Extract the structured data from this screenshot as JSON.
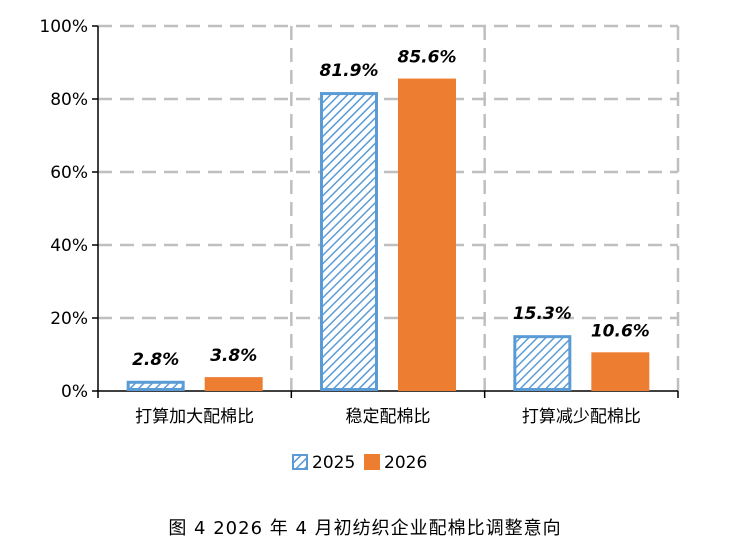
{
  "chart_data": {
    "type": "bar",
    "title": "",
    "xlabel": "",
    "ylabel": "",
    "categories": [
      "打算加大配棉比",
      "稳定配棉比",
      "打算减少配棉比"
    ],
    "series": [
      {
        "name": "2025",
        "values": [
          2.8,
          81.9,
          15.3
        ],
        "labels": [
          "2.8%",
          "81.9%",
          "15.3%"
        ],
        "color": "#5b9bd5",
        "pattern": "diagonal-hatch"
      },
      {
        "name": "2026",
        "values": [
          3.8,
          85.6,
          10.6
        ],
        "labels": [
          "3.8%",
          "85.6%",
          "10.6%"
        ],
        "color": "#ed7d31",
        "pattern": "solid"
      }
    ],
    "ylim": [
      0,
      100
    ],
    "yticks": [
      "0%",
      "20%",
      "40%",
      "60%",
      "80%",
      "100%"
    ],
    "grid": "dashed",
    "legend": "bottom"
  },
  "caption": "图 4   2026 年 4 月初纺织企业配棉比调整意向"
}
